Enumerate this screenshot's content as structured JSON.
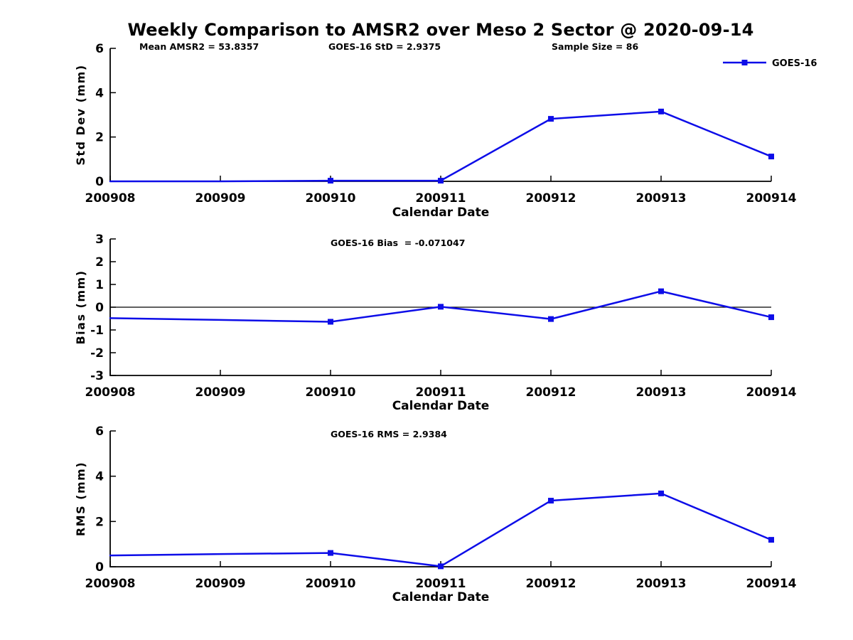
{
  "page": {
    "title": "Weekly Comparison to AMSR2 over Meso 2 Sector @ 2020-09-14"
  },
  "chart_data": [
    {
      "type": "line",
      "ylabel": "Std Dev (mm)",
      "xlabel": "Calendar Date",
      "ylim": [
        0,
        6
      ],
      "yticks": [
        0,
        2,
        4,
        6
      ],
      "grid": false,
      "zero_line": false,
      "categories": [
        "200908",
        "200909",
        "200910",
        "200911",
        "200912",
        "200913",
        "200914"
      ],
      "annotations": [
        "Mean AMSR2 = 53.8357",
        "GOES-16 StD = 2.9375",
        "Sample Size = 86"
      ],
      "legend": {
        "label": "GOES-16",
        "position": "upper-right"
      },
      "series": [
        {
          "name": "GOES-16",
          "color": "#0d0de8",
          "marker": "square",
          "values": [
            0.0,
            0.0,
            0.03,
            0.03,
            2.82,
            3.15,
            1.12
          ],
          "marker_mask": [
            false,
            false,
            true,
            true,
            true,
            true,
            true
          ]
        }
      ]
    },
    {
      "type": "line",
      "ylabel": "Bias (mm)",
      "xlabel": "Calendar Date",
      "ylim": [
        -3,
        3
      ],
      "yticks": [
        3,
        2,
        1,
        0,
        -1,
        -2,
        -3
      ],
      "grid": false,
      "zero_line": true,
      "categories": [
        "200908",
        "200909",
        "200910",
        "200911",
        "200912",
        "200913",
        "200914"
      ],
      "annotations": [
        "GOES-16 Bias  = -0.071047"
      ],
      "legend": null,
      "series": [
        {
          "name": "GOES-16",
          "color": "#0d0de8",
          "marker": "square",
          "values": [
            -0.48,
            -0.56,
            -0.64,
            0.02,
            -0.52,
            0.7,
            -0.44
          ],
          "marker_mask": [
            false,
            false,
            true,
            true,
            true,
            true,
            true
          ]
        }
      ]
    },
    {
      "type": "line",
      "ylabel": "RMS (mm)",
      "xlabel": "Calendar Date",
      "ylim": [
        0,
        6
      ],
      "yticks": [
        0,
        2,
        4,
        6
      ],
      "grid": false,
      "zero_line": false,
      "categories": [
        "200908",
        "200909",
        "200910",
        "200911",
        "200912",
        "200913",
        "200914"
      ],
      "annotations": [
        "GOES-16 RMS = 2.9384"
      ],
      "legend": null,
      "series": [
        {
          "name": "GOES-16",
          "color": "#0d0de8",
          "marker": "square",
          "values": [
            0.5,
            0.56,
            0.61,
            0.02,
            2.92,
            3.24,
            1.19
          ],
          "marker_mask": [
            false,
            false,
            true,
            true,
            true,
            true,
            true
          ]
        }
      ]
    }
  ]
}
